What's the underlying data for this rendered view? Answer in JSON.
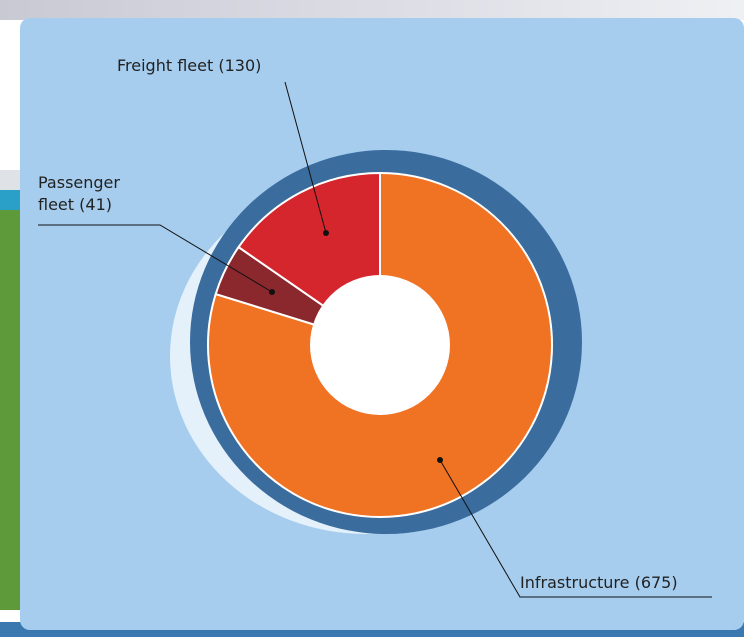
{
  "chart_data": {
    "type": "donut",
    "categories": [
      "Infrastructure",
      "Passenger fleet",
      "Freight fleet"
    ],
    "values": [
      675,
      41,
      130
    ],
    "value_labels": [
      "(675)",
      "(41)",
      "(130)"
    ],
    "colors": [
      "#f07223",
      "#8a282d",
      "#d5262e"
    ]
  }
}
